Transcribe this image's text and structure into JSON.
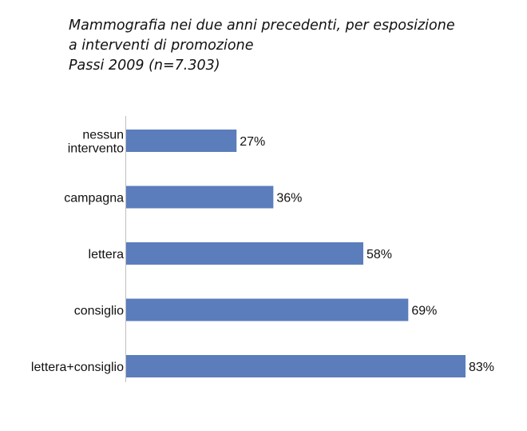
{
  "chart_data": {
    "type": "bar",
    "orientation": "horizontal",
    "title_lines": [
      "Mammografia nei due anni precedenti, per esposizione",
      "a interventi di promozione",
      "Passi 2009 (n=7.303)"
    ],
    "categories": [
      [
        "nessun",
        "intervento"
      ],
      [
        "campagna"
      ],
      [
        "lettera"
      ],
      [
        "consiglio"
      ],
      [
        "lettera+consiglio"
      ]
    ],
    "values": [
      27,
      36,
      58,
      69,
      83
    ],
    "value_labels": [
      "27%",
      "36%",
      "58%",
      "69%",
      "83%"
    ],
    "xlim": [
      0,
      100
    ],
    "grid": false,
    "legend": "none",
    "bar_color": "#5b7dbc"
  }
}
